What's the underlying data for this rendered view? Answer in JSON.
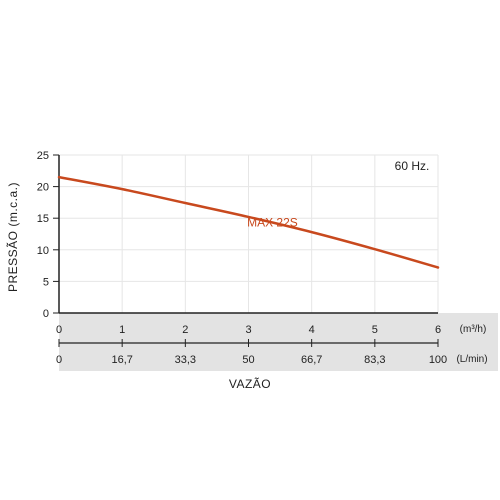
{
  "chart_data": {
    "type": "line",
    "ylabel": "PRESSÃO (m.c.a.)",
    "xlabel": "VAZÃO",
    "ylim": [
      0,
      25
    ],
    "y_ticks": [
      "0",
      "5",
      "10",
      "15",
      "20",
      "25"
    ],
    "y_tick_values": [
      0,
      5,
      10,
      15,
      20,
      25
    ],
    "xlim": [
      0,
      6
    ],
    "x_ticks_m3h": [
      "0",
      "1",
      "2",
      "3",
      "4",
      "5",
      "6"
    ],
    "x_ticks_m3h_values": [
      0,
      1,
      2,
      3,
      4,
      5,
      6
    ],
    "x_unit_m3h": "(m³/h)",
    "x_ticks_lmin": [
      "0",
      "16,7",
      "33,3",
      "50",
      "66,7",
      "83,3",
      "100"
    ],
    "x_unit_lmin": "(L/min)",
    "annotation": "60 Hz.",
    "grid": true,
    "series": [
      {
        "name": "MAX 22S",
        "color": "#c8491e",
        "x": [
          0,
          1,
          2,
          3,
          4,
          5,
          6
        ],
        "y": [
          21.5,
          19.6,
          17.4,
          15.2,
          12.8,
          10.1,
          7.2
        ]
      }
    ]
  },
  "colors": {
    "band": "#e3e3e3",
    "grid": "#e6e6e6",
    "axis": "#222222",
    "series": "#c8491e"
  }
}
